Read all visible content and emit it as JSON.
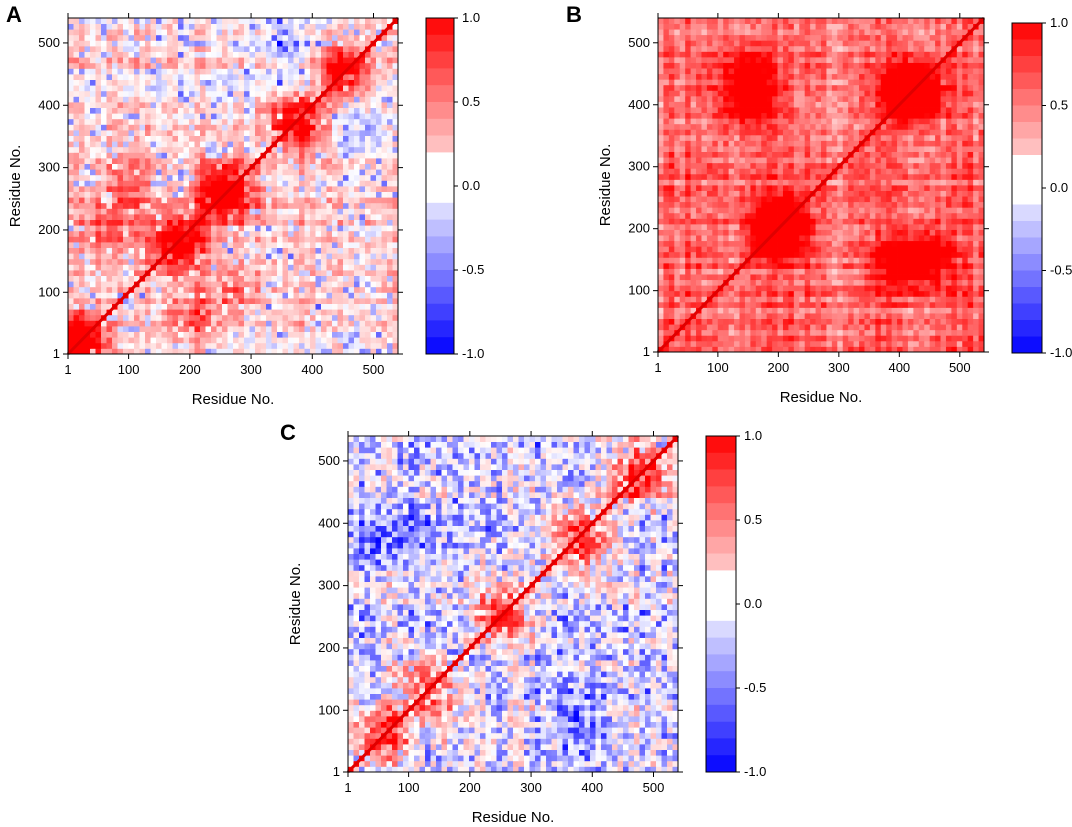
{
  "chart_data": [
    {
      "type": "heatmap",
      "panel": "A",
      "title": "",
      "xlabel": "Residue No.",
      "ylabel": "Residue No.",
      "xlim": [
        1,
        540
      ],
      "ylim": [
        1,
        540
      ],
      "xticks": [
        "1",
        "100",
        "200",
        "300",
        "400",
        "500"
      ],
      "yticks": [
        "1",
        "100",
        "200",
        "300",
        "400",
        "500"
      ],
      "colorbar": {
        "range": [
          -1.0,
          1.0
        ],
        "labels": [
          "1.0",
          "0.5",
          "0.0",
          "-0.5",
          "-1.0"
        ]
      },
      "mean_correlation": 0.18,
      "negative_fraction": 0.15,
      "diagonal_value": 1.0,
      "hotspots": [
        {
          "center": [
            20,
            20
          ],
          "value": 0.7
        },
        {
          "center": [
            60,
            200
          ],
          "value": 0.55
        },
        {
          "center": [
            180,
            180
          ],
          "value": 0.7
        },
        {
          "center": [
            260,
            260
          ],
          "value": 0.85
        },
        {
          "center": [
            100,
            270
          ],
          "value": 0.5
        },
        {
          "center": [
            380,
            380
          ],
          "value": 0.75
        },
        {
          "center": [
            450,
            450
          ],
          "value": 0.6
        },
        {
          "center": [
            360,
            500
          ],
          "value": -0.45
        },
        {
          "center": [
            380,
            430
          ],
          "value": -0.4
        }
      ]
    },
    {
      "type": "heatmap",
      "panel": "B",
      "title": "",
      "xlabel": "Residue No.",
      "ylabel": "Residue No.",
      "xlim": [
        1,
        540
      ],
      "ylim": [
        1,
        540
      ],
      "xticks": [
        "1",
        "100",
        "200",
        "300",
        "400",
        "500"
      ],
      "yticks": [
        "1",
        "100",
        "200",
        "300",
        "400",
        "500"
      ],
      "colorbar": {
        "range": [
          -1.0,
          1.0
        ],
        "labels": [
          "1.0",
          "0.5",
          "0.0",
          "-0.5",
          "-1.0"
        ]
      },
      "mean_correlation": 0.58,
      "negative_fraction": 0.0,
      "diagonal_value": 1.0,
      "hotspots": [
        {
          "center": [
            200,
            200
          ],
          "value": 0.75
        },
        {
          "center": [
            420,
            420
          ],
          "value": 0.8
        },
        {
          "center": [
            150,
            400
          ],
          "value": 0.7
        },
        {
          "center": [
            450,
            150
          ],
          "value": 0.7
        }
      ]
    },
    {
      "type": "heatmap",
      "panel": "C",
      "title": "",
      "xlabel": "Residue No.",
      "ylabel": "Residue No.",
      "xlim": [
        1,
        540
      ],
      "ylim": [
        1,
        540
      ],
      "xticks": [
        "1",
        "100",
        "200",
        "300",
        "400",
        "500"
      ],
      "yticks": [
        "1",
        "100",
        "200",
        "300",
        "400",
        "500"
      ],
      "colorbar": {
        "range": [
          -1.0,
          1.0
        ],
        "labels": [
          "1.0",
          "0.5",
          "0.0",
          "-0.5",
          "-1.0"
        ]
      },
      "mean_correlation": 0.02,
      "negative_fraction": 0.4,
      "diagonal_value": 1.0,
      "hotspots": [
        {
          "center": [
            60,
            60
          ],
          "value": 0.55
        },
        {
          "center": [
            120,
            150
          ],
          "value": 0.6
        },
        {
          "center": [
            250,
            250
          ],
          "value": 0.55
        },
        {
          "center": [
            380,
            380
          ],
          "value": 0.65
        },
        {
          "center": [
            480,
            480
          ],
          "value": 0.6
        },
        {
          "center": [
            60,
            380
          ],
          "value": -0.3
        },
        {
          "center": [
            380,
            100
          ],
          "value": -0.25
        }
      ]
    }
  ]
}
